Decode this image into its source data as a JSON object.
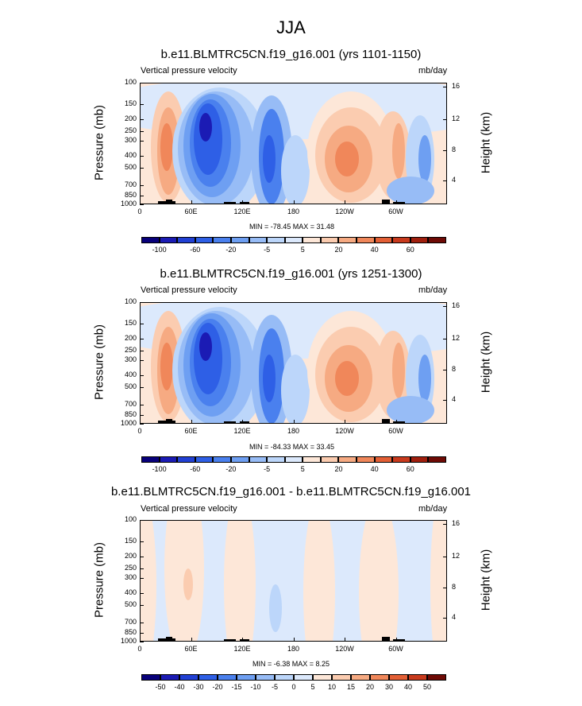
{
  "title": "JJA",
  "chart_data": [
    {
      "type": "heatmap",
      "title": "b.e11.BLMTRC5CN.f19_g16.001 (yrs 1101-1150)",
      "left_label": "Vertical pressure velocity",
      "right_label": "mb/day",
      "ylabel": "Pressure (mb)",
      "ylabel_right": "Height (km)",
      "y_ticks": [
        "100",
        "150",
        "200",
        "250",
        "300",
        "400",
        "500",
        "700",
        "850",
        "1000"
      ],
      "y_right_ticks": [
        "16",
        "12",
        "8",
        "4"
      ],
      "x_ticks": [
        "0",
        "60E",
        "120E",
        "180",
        "120W",
        "60W"
      ],
      "stats": "MIN = -78.45  MAX =  31.48",
      "colorbar_ticks": [
        "-100",
        "-60",
        "-20",
        "-5",
        "5",
        "20",
        "40",
        "60"
      ],
      "colors": [
        "#08007a",
        "#1b1bb4",
        "#2140d4",
        "#2e5fe6",
        "#4a80ee",
        "#6e9ff2",
        "#97bcf6",
        "#bcd6fa",
        "#dce9fc",
        "#fde7d8",
        "#fbccb0",
        "#f6aa82",
        "#f0875a",
        "#e35f35",
        "#c83a1d",
        "#a01f0e",
        "#6e0a05"
      ],
      "grid": false
    },
    {
      "type": "heatmap",
      "title": "b.e11.BLMTRC5CN.f19_g16.001 (yrs 1251-1300)",
      "left_label": "Vertical pressure velocity",
      "right_label": "mb/day",
      "ylabel": "Pressure (mb)",
      "ylabel_right": "Height (km)",
      "y_ticks": [
        "100",
        "150",
        "200",
        "250",
        "300",
        "400",
        "500",
        "700",
        "850",
        "1000"
      ],
      "y_right_ticks": [
        "16",
        "12",
        "8",
        "4"
      ],
      "x_ticks": [
        "0",
        "60E",
        "120E",
        "180",
        "120W",
        "60W"
      ],
      "stats": "MIN = -84.33  MAX =  33.45",
      "colorbar_ticks": [
        "-100",
        "-60",
        "-20",
        "-5",
        "5",
        "20",
        "40",
        "60"
      ],
      "colors": [
        "#08007a",
        "#1b1bb4",
        "#2140d4",
        "#2e5fe6",
        "#4a80ee",
        "#6e9ff2",
        "#97bcf6",
        "#bcd6fa",
        "#dce9fc",
        "#fde7d8",
        "#fbccb0",
        "#f6aa82",
        "#f0875a",
        "#e35f35",
        "#c83a1d",
        "#a01f0e",
        "#6e0a05"
      ],
      "grid": false
    },
    {
      "type": "heatmap",
      "title": "b.e11.BLMTRC5CN.f19_g16.001 - b.e11.BLMTRC5CN.f19_g16.001",
      "left_label": "Vertical pressure velocity",
      "right_label": "mb/day",
      "ylabel": "Pressure (mb)",
      "ylabel_right": "Height (km)",
      "y_ticks": [
        "100",
        "150",
        "200",
        "250",
        "300",
        "400",
        "500",
        "700",
        "850",
        "1000"
      ],
      "y_right_ticks": [
        "16",
        "12",
        "8",
        "4"
      ],
      "x_ticks": [
        "0",
        "60E",
        "120E",
        "180",
        "120W",
        "60W"
      ],
      "stats": "MIN = -6.38  MAX =  8.25",
      "colorbar_ticks": [
        "-50",
        "-40",
        "-30",
        "-20",
        "-15",
        "-10",
        "-5",
        "0",
        "5",
        "10",
        "15",
        "20",
        "30",
        "40",
        "50"
      ],
      "colors": [
        "#08007a",
        "#1b1bb4",
        "#2140d4",
        "#2e5fe6",
        "#4a80ee",
        "#6e9ff2",
        "#97bcf6",
        "#bcd6fa",
        "#dce9fc",
        "#fde7d8",
        "#fbccb0",
        "#f6aa82",
        "#f0875a",
        "#e35f35",
        "#c83a1d",
        "#6e0a05"
      ],
      "grid": false
    }
  ]
}
